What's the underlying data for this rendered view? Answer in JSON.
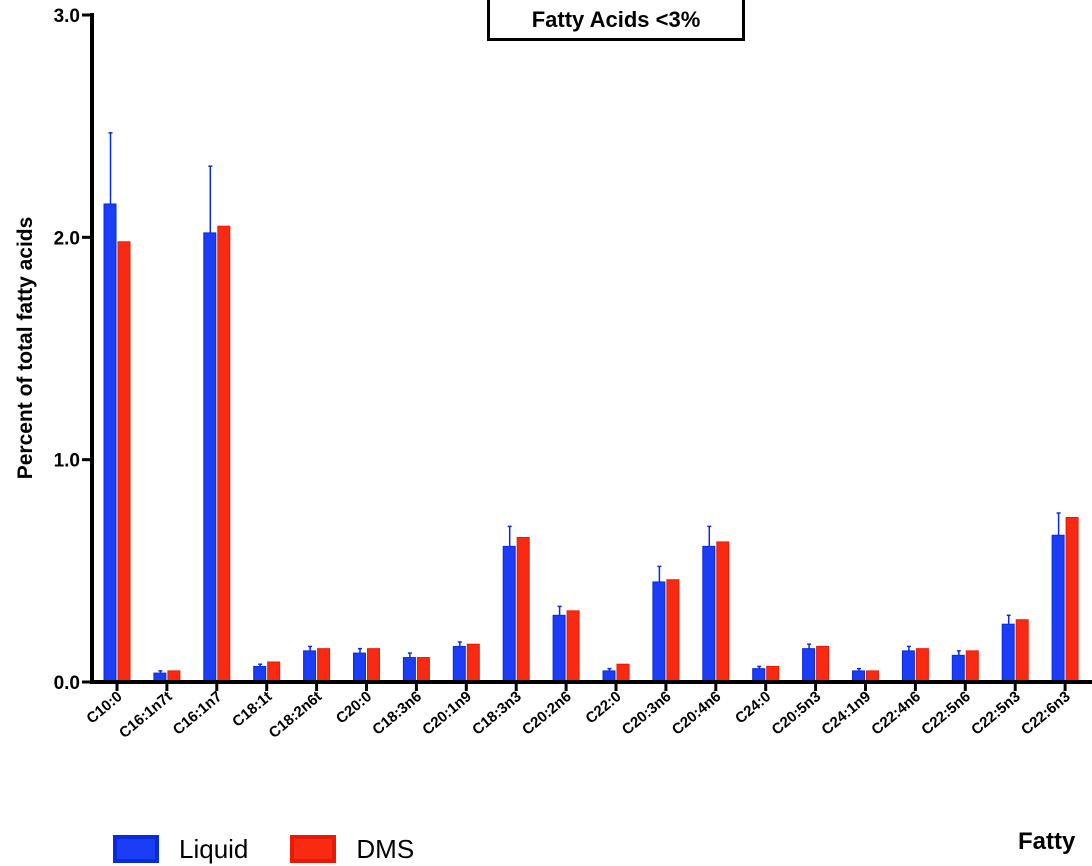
{
  "chart_data": {
    "type": "bar",
    "title": "Fatty Acids <3%",
    "ylabel": "Percent of total fatty acids",
    "xlabel": "Fatty",
    "ylim": [
      0,
      3
    ],
    "yticks": [
      "0.0",
      "1.0",
      "2.0",
      "3.0"
    ],
    "categories": [
      "C10:0",
      "C16:1n7t",
      "C16:1n7",
      "C18:1t",
      "C18:2n6t",
      "C20:0",
      "C18:3n6",
      "C20:1n9",
      "C18:3n3",
      "C20:2n6",
      "C22:0",
      "C20:3n6",
      "C20:4n6",
      "C24:0",
      "C20:5n3",
      "C24:1n9",
      "C22:4n6",
      "C22:5n6",
      "C22:5n3",
      "C22:6n3"
    ],
    "series": [
      {
        "name": "Liquid",
        "color": "#1a3df5",
        "values": [
          2.15,
          0.04,
          2.02,
          0.07,
          0.14,
          0.13,
          0.11,
          0.16,
          0.61,
          0.3,
          0.05,
          0.45,
          0.61,
          0.06,
          0.15,
          0.05,
          0.14,
          0.12,
          0.26,
          0.66
        ],
        "error": [
          0.32,
          0.01,
          0.3,
          0.01,
          0.02,
          0.02,
          0.02,
          0.02,
          0.09,
          0.04,
          0.01,
          0.07,
          0.09,
          0.01,
          0.02,
          0.01,
          0.02,
          0.02,
          0.04,
          0.1
        ]
      },
      {
        "name": "DMS",
        "color": "#f82b12",
        "values": [
          1.98,
          0.05,
          2.05,
          0.09,
          0.15,
          0.15,
          0.11,
          0.17,
          0.65,
          0.32,
          0.08,
          0.46,
          0.63,
          0.07,
          0.16,
          0.05,
          0.15,
          0.14,
          0.28,
          0.74
        ]
      }
    ],
    "legend_position": "bottom-left"
  }
}
